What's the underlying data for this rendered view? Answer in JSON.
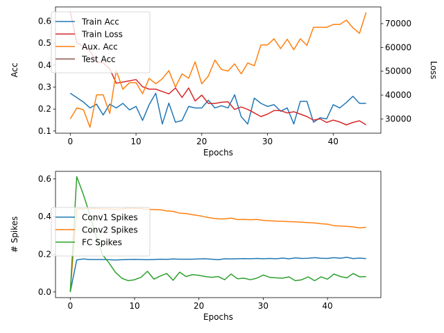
{
  "chart_data": [
    {
      "type": "line",
      "title": "",
      "xlabel": "Epochs",
      "ylabel": "Acc",
      "y2label": "Loss",
      "xlim": [
        -2.25,
        47.25
      ],
      "ylim": [
        0.09,
        0.665
      ],
      "y2lim": [
        24000,
        77000
      ],
      "xticks": [
        0,
        10,
        20,
        30,
        40
      ],
      "yticks": [
        0.1,
        0.2,
        0.3,
        0.4,
        0.5,
        0.6
      ],
      "y2ticks": [
        30000,
        40000,
        50000,
        60000,
        70000
      ],
      "legend_position": "top-left",
      "legend": [
        "Train Acc",
        "Train Loss",
        "Aux. Acc",
        "Test Acc"
      ],
      "series": [
        {
          "name": "Train Acc",
          "axis": "left",
          "color": "#1f77b4",
          "x": [
            0,
            1,
            2,
            3,
            4,
            5,
            6,
            7,
            8,
            9,
            10,
            11,
            12,
            13,
            14,
            15,
            16,
            17,
            18,
            19,
            20,
            21,
            22,
            23,
            24,
            25,
            26,
            27,
            28,
            29,
            30,
            31,
            32,
            33,
            34,
            35,
            36,
            37,
            38,
            39,
            40,
            41,
            42,
            43,
            44,
            45
          ],
          "values": [
            0.272,
            0.252,
            0.232,
            0.205,
            0.222,
            0.173,
            0.222,
            0.205,
            0.226,
            0.196,
            0.212,
            0.148,
            0.22,
            0.272,
            0.132,
            0.227,
            0.14,
            0.148,
            0.212,
            0.205,
            0.205,
            0.24,
            0.205,
            0.215,
            0.205,
            0.265,
            0.165,
            0.132,
            0.25,
            0.226,
            0.212,
            0.22,
            0.19,
            0.205,
            0.132,
            0.235,
            0.235,
            0.14,
            0.16,
            0.155,
            0.22,
            0.205,
            0.23,
            0.258,
            0.226,
            0.226
          ]
        },
        {
          "name": "Train Loss",
          "axis": "right",
          "color": "#d62728",
          "x": [
            0,
            1,
            2,
            3,
            4,
            5,
            6,
            7,
            8,
            9,
            10,
            11,
            12,
            13,
            14,
            15,
            16,
            17,
            18,
            19,
            20,
            21,
            22,
            23,
            24,
            25,
            26,
            27,
            28,
            29,
            30,
            31,
            32,
            33,
            34,
            35,
            36,
            37,
            38,
            39,
            40,
            41,
            42,
            43,
            44,
            45
          ],
          "values": [
            75000,
            62000,
            60500,
            58500,
            54000,
            53500,
            51000,
            45000,
            45500,
            46000,
            46500,
            43500,
            42500,
            42500,
            41500,
            40500,
            43000,
            39000,
            43000,
            37500,
            40000,
            36500,
            36500,
            37000,
            37200,
            34000,
            35000,
            34000,
            32500,
            31000,
            32000,
            33500,
            33500,
            32500,
            33000,
            32000,
            31000,
            29500,
            30000,
            28500,
            29500,
            28700,
            27500,
            28500,
            29200,
            27500
          ]
        },
        {
          "name": "Aux. Acc",
          "axis": "left",
          "color": "#ff7f0e",
          "x": [
            0,
            1,
            2,
            3,
            4,
            5,
            6,
            7,
            8,
            9,
            10,
            11,
            12,
            13,
            14,
            15,
            16,
            17,
            18,
            19,
            20,
            21,
            22,
            23,
            24,
            25,
            26,
            27,
            28,
            29,
            30,
            31,
            32,
            33,
            34,
            35,
            36,
            37,
            38,
            39,
            40,
            41,
            42,
            43,
            44,
            45
          ],
          "values": [
            0.155,
            0.205,
            0.197,
            0.117,
            0.265,
            0.265,
            0.18,
            0.375,
            0.29,
            0.32,
            0.32,
            0.27,
            0.34,
            0.315,
            0.338,
            0.375,
            0.3,
            0.36,
            0.34,
            0.415,
            0.315,
            0.35,
            0.423,
            0.38,
            0.373,
            0.406,
            0.36,
            0.41,
            0.397,
            0.492,
            0.492,
            0.52,
            0.475,
            0.518,
            0.47,
            0.52,
            0.49,
            0.572,
            0.572,
            0.572,
            0.585,
            0.585,
            0.605,
            0.57,
            0.545,
            0.64
          ]
        },
        {
          "name": "Test Acc",
          "axis": "left",
          "color": "#8c564b",
          "x": [],
          "values": []
        }
      ]
    },
    {
      "type": "line",
      "title": "",
      "xlabel": "Epochs",
      "ylabel": "# Spikes",
      "xlim": [
        -2.3,
        48.3
      ],
      "ylim": [
        -0.03,
        0.64
      ],
      "xticks": [
        0,
        10,
        20,
        30,
        40
      ],
      "yticks": [
        0.0,
        0.2,
        0.4,
        0.6
      ],
      "legend_position": "center-left",
      "legend": [
        "Conv1 Spikes",
        "Conv2 Spikes",
        "FC Spikes"
      ],
      "series": [
        {
          "name": "Conv1 Spikes",
          "color": "#1f77b4",
          "x": [
            0,
            1,
            2,
            3,
            4,
            5,
            6,
            7,
            8,
            9,
            10,
            11,
            12,
            13,
            14,
            15,
            16,
            17,
            18,
            19,
            20,
            21,
            22,
            23,
            24,
            25,
            26,
            27,
            28,
            29,
            30,
            31,
            32,
            33,
            34,
            35,
            36,
            37,
            38,
            39,
            40,
            41,
            42,
            43,
            44,
            45,
            46
          ],
          "values": [
            0.0,
            0.17,
            0.175,
            0.172,
            0.172,
            0.172,
            0.171,
            0.17,
            0.171,
            0.172,
            0.173,
            0.172,
            0.171,
            0.172,
            0.174,
            0.173,
            0.175,
            0.174,
            0.174,
            0.174,
            0.175,
            0.176,
            0.174,
            0.171,
            0.176,
            0.175,
            0.176,
            0.177,
            0.176,
            0.178,
            0.176,
            0.178,
            0.176,
            0.18,
            0.176,
            0.181,
            0.178,
            0.179,
            0.182,
            0.179,
            0.178,
            0.182,
            0.179,
            0.184,
            0.177,
            0.18,
            0.177
          ]
        },
        {
          "name": "Conv2 Spikes",
          "color": "#ff7f0e",
          "x": [
            0,
            1,
            2,
            3,
            4,
            5,
            6,
            7,
            8,
            9,
            10,
            11,
            12,
            13,
            14,
            15,
            16,
            17,
            18,
            19,
            20,
            21,
            22,
            23,
            24,
            25,
            26,
            27,
            28,
            29,
            30,
            31,
            32,
            33,
            34,
            35,
            36,
            37,
            38,
            39,
            40,
            41,
            42,
            43,
            44,
            45,
            46
          ],
          "values": [
            0.0,
            0.44,
            0.442,
            0.443,
            0.444,
            0.44,
            0.44,
            0.438,
            0.44,
            0.445,
            0.444,
            0.442,
            0.438,
            0.437,
            0.436,
            0.43,
            0.428,
            0.418,
            0.416,
            0.41,
            0.405,
            0.398,
            0.392,
            0.388,
            0.388,
            0.392,
            0.384,
            0.385,
            0.383,
            0.385,
            0.38,
            0.378,
            0.376,
            0.375,
            0.373,
            0.372,
            0.37,
            0.368,
            0.366,
            0.362,
            0.36,
            0.352,
            0.35,
            0.348,
            0.345,
            0.34,
            0.343
          ]
        },
        {
          "name": "FC Spikes",
          "color": "#2ca02c",
          "x": [
            0,
            1,
            2,
            3,
            4,
            5,
            6,
            7,
            8,
            9,
            10,
            11,
            12,
            13,
            14,
            15,
            16,
            17,
            18,
            19,
            20,
            21,
            22,
            23,
            24,
            25,
            26,
            27,
            28,
            29,
            30,
            31,
            32,
            33,
            34,
            35,
            36,
            37,
            38,
            39,
            40,
            41,
            42,
            43,
            44,
            45,
            46
          ],
          "values": [
            0.0,
            0.612,
            0.52,
            0.415,
            0.298,
            0.198,
            0.155,
            0.105,
            0.073,
            0.06,
            0.065,
            0.078,
            0.11,
            0.068,
            0.085,
            0.098,
            0.062,
            0.105,
            0.082,
            0.092,
            0.088,
            0.082,
            0.078,
            0.082,
            0.065,
            0.095,
            0.07,
            0.073,
            0.065,
            0.073,
            0.09,
            0.078,
            0.075,
            0.073,
            0.08,
            0.06,
            0.065,
            0.08,
            0.06,
            0.08,
            0.068,
            0.095,
            0.082,
            0.075,
            0.098,
            0.08,
            0.082
          ]
        }
      ]
    }
  ]
}
